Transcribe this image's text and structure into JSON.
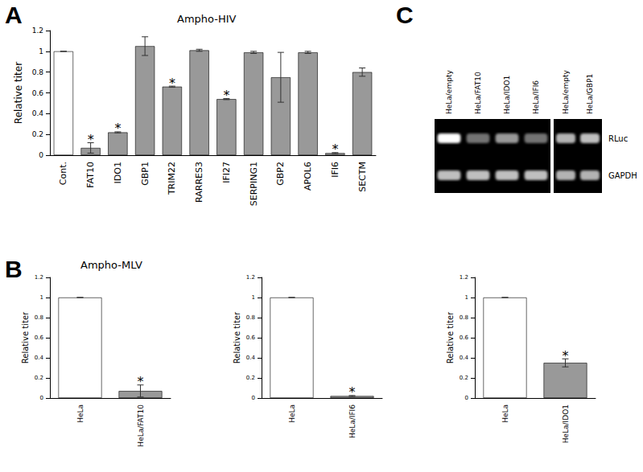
{
  "chart_data": [
    {
      "type": "bar",
      "panel": "A",
      "title": "Ampho-HIV",
      "ylabel": "Relative titer",
      "categories": [
        "Cont.",
        "FAT10",
        "IDO1",
        "GBP1",
        "TRIM22",
        "RARRES3",
        "IFI27",
        "SERPING1",
        "GBP2",
        "APOL6",
        "IFI6",
        "SECTM"
      ],
      "values": [
        1,
        0.07,
        0.22,
        1.05,
        0.66,
        1.01,
        0.54,
        0.99,
        0.75,
        0.99,
        0.02,
        0.8
      ],
      "errors": [
        0,
        0.05,
        0.005,
        0.09,
        0.005,
        0.01,
        0.005,
        0.01,
        0.24,
        0.01,
        0.005,
        0.04
      ],
      "annotations": [
        null,
        "*",
        "*",
        null,
        "*",
        null,
        "*",
        null,
        null,
        null,
        "*",
        null
      ],
      "colors": [
        "#ffffff",
        "#999999",
        "#999999",
        "#999999",
        "#999999",
        "#999999",
        "#999999",
        "#999999",
        "#999999",
        "#999999",
        "#999999",
        "#999999"
      ],
      "ylim": [
        0,
        1.2
      ],
      "yticks": [
        0,
        0.2,
        0.4,
        0.6,
        0.8,
        1,
        1.2
      ],
      "grid": false
    },
    {
      "type": "bar",
      "panel": "B",
      "title": "Ampho-MLV",
      "ylabel": "Relative titer",
      "categories": [
        "HeLa",
        "HeLa/FAT10"
      ],
      "values": [
        1,
        0.07
      ],
      "errors": [
        0,
        0.06
      ],
      "annotations": [
        null,
        "*"
      ],
      "colors": [
        "#ffffff",
        "#999999"
      ],
      "ylim": [
        0,
        1.2
      ],
      "yticks": [
        0,
        0.2,
        0.4,
        0.6,
        0.8,
        1,
        1.2
      ],
      "grid": false
    },
    {
      "type": "bar",
      "ylabel": "Relative titer",
      "categories": [
        "HeLa",
        "HeLa/IFI6"
      ],
      "values": [
        1,
        0.02
      ],
      "errors": [
        0,
        0.005
      ],
      "annotations": [
        null,
        "*"
      ],
      "colors": [
        "#ffffff",
        "#999999"
      ],
      "ylim": [
        0,
        1.2
      ],
      "yticks": [
        0,
        0.2,
        0.4,
        0.6,
        0.8,
        1,
        1.2
      ],
      "grid": false
    },
    {
      "type": "bar",
      "ylabel": "Relative titer",
      "categories": [
        "HeLa",
        "HeLa/IDO1"
      ],
      "values": [
        1,
        0.35
      ],
      "errors": [
        0,
        0.04
      ],
      "annotations": [
        null,
        "*"
      ],
      "colors": [
        "#ffffff",
        "#999999"
      ],
      "ylim": [
        0,
        1.2
      ],
      "yticks": [
        0,
        0.2,
        0.4,
        0.6,
        0.8,
        1,
        1.2
      ],
      "grid": false
    }
  ],
  "gel": {
    "panel": "C",
    "rows": [
      "RLuc",
      "GAPDH"
    ],
    "groups": [
      {
        "lanes": [
          "HeLa/empty",
          "HeLa/FAT10",
          "HeLa/IDO1",
          "HeLa/IFI6"
        ],
        "intensity": [
          [
            1.0,
            0.45,
            0.6,
            0.45
          ],
          [
            0.75,
            0.75,
            0.75,
            0.75
          ]
        ]
      },
      {
        "lanes": [
          "HeLa/empty",
          "HeLa/GBP1"
        ],
        "intensity": [
          [
            0.7,
            0.75
          ],
          [
            0.7,
            0.7
          ]
        ]
      }
    ]
  }
}
